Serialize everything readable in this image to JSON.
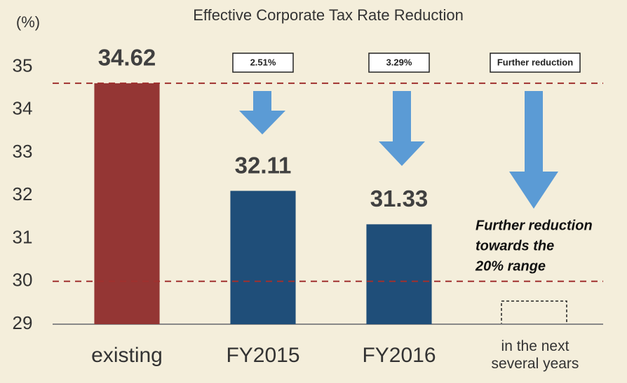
{
  "chart_data": {
    "type": "bar",
    "title": "Effective Corporate Tax Rate Reduction",
    "ylabel": "(%)",
    "categories": [
      "existing",
      "FY2015",
      "FY2016",
      "in the next several years"
    ],
    "values": [
      34.62,
      32.11,
      31.33,
      null
    ],
    "colors": [
      "#943634",
      "#1f4e79",
      "#1f4e79",
      "#1f4e79"
    ],
    "ylim": [
      29,
      35.5
    ],
    "yticks": [
      29,
      30,
      31,
      32,
      33,
      34,
      35
    ],
    "reference_lines": [
      34.62,
      30
    ],
    "reference_color": "#a0312f",
    "annotations": [
      "2.51%",
      "3.29%",
      "Further reduction"
    ],
    "note": [
      "Further reduction",
      "towards the",
      "20% range"
    ]
  }
}
